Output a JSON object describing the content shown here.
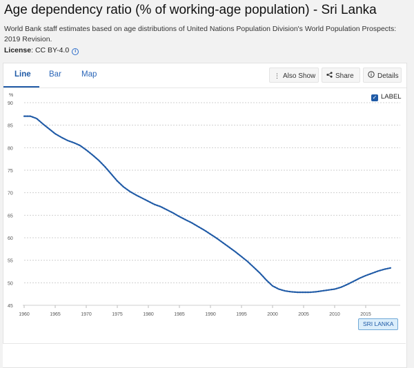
{
  "header": {
    "title": "Age dependency ratio (% of working-age population) - Sri Lanka",
    "subtitle": "World Bank staff estimates based on age distributions of United Nations Population Division's World Population Prospects: 2019 Revision.",
    "license_label": "License",
    "license_value": ": CC BY-4.0"
  },
  "tabs": [
    {
      "label": "Line",
      "active": true
    },
    {
      "label": "Bar",
      "active": false
    },
    {
      "label": "Map",
      "active": false
    }
  ],
  "toolbar": {
    "also_show": "Also Show",
    "share": "Share",
    "details": "Details"
  },
  "label_toggle": {
    "label": "LABEL",
    "checked": true
  },
  "colors": {
    "line": "#1f5aa6",
    "accent": "#2b66b8"
  },
  "chart_data": {
    "type": "line",
    "title": "",
    "ylabel": "%",
    "xlabel": "",
    "ylim": [
      45,
      90
    ],
    "xlim": [
      1960,
      2019
    ],
    "yticks": [
      45,
      50,
      55,
      60,
      65,
      70,
      75,
      80,
      85,
      90
    ],
    "xticks": [
      1960,
      1965,
      1970,
      1975,
      1980,
      1985,
      1990,
      1995,
      2000,
      2005,
      2010,
      2015
    ],
    "grid": true,
    "series": [
      {
        "name": "SRI LANKA",
        "x": [
          1960,
          1961,
          1962,
          1963,
          1964,
          1965,
          1966,
          1967,
          1968,
          1969,
          1970,
          1971,
          1972,
          1973,
          1974,
          1975,
          1976,
          1977,
          1978,
          1979,
          1980,
          1981,
          1982,
          1983,
          1984,
          1985,
          1986,
          1987,
          1988,
          1989,
          1990,
          1991,
          1992,
          1993,
          1994,
          1995,
          1996,
          1997,
          1998,
          1999,
          2000,
          2001,
          2002,
          2003,
          2004,
          2005,
          2006,
          2007,
          2008,
          2009,
          2010,
          2011,
          2012,
          2013,
          2014,
          2015,
          2016,
          2017,
          2018,
          2019
        ],
        "y": [
          87.0,
          87.0,
          86.5,
          85.3,
          84.2,
          83.1,
          82.3,
          81.6,
          81.1,
          80.5,
          79.5,
          78.4,
          77.2,
          75.8,
          74.2,
          72.6,
          71.3,
          70.3,
          69.5,
          68.8,
          68.1,
          67.4,
          66.9,
          66.2,
          65.5,
          64.7,
          64.0,
          63.3,
          62.5,
          61.7,
          60.8,
          59.9,
          58.9,
          57.9,
          56.9,
          55.8,
          54.7,
          53.4,
          52.1,
          50.6,
          49.3,
          48.6,
          48.2,
          48.0,
          47.9,
          47.9,
          47.9,
          48.0,
          48.2,
          48.4,
          48.6,
          49.0,
          49.6,
          50.3,
          51.0,
          51.6,
          52.1,
          52.6,
          53.0,
          53.3
        ]
      }
    ]
  }
}
